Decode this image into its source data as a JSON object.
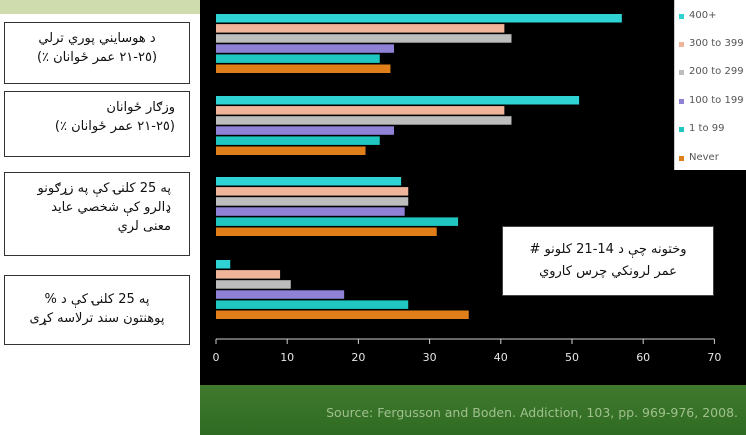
{
  "labels": [
    {
      "line1": "د هوسايني پوري ترلي",
      "line2": "(٢٥-٢١ عمر ځوانان ٪)"
    },
    {
      "line1": "وزګار ځوانان",
      "line2": "(٢٥-٢١ عمر ځوانان ٪)"
    },
    {
      "line1": "په 25 کلنۍ کې په زړګونو",
      "line2": "ډالرو کې شخصي عايد",
      "line3": "معنی لري"
    },
    {
      "line1": "په 25 کلنۍ کې د  %",
      "line2": "پوهنتون سند ترلاسه کړی"
    }
  ],
  "annotation": {
    "line1": "وختونه چې د 14-21 کلونو  #",
    "line2": "عمر لرونکي چرس کاروي"
  },
  "source": "Source: Fergusson and Boden. Addiction, 103, pp. 969-976, 2008.",
  "colors": {
    "400+": "#2fd3d3",
    "300 to 399": "#f0b49a",
    "200 to 299": "#bdbdbd",
    "100 to 199": "#8f82d6",
    "1 to 99": "#1fc7c0",
    "Never": "#e07f1a"
  },
  "chart_data": {
    "type": "bar",
    "orientation": "horizontal",
    "xlim": [
      0,
      70
    ],
    "xticks": [
      "0",
      "10",
      "20",
      "30",
      "40",
      "50",
      "60",
      "70"
    ],
    "groups": [
      "g1",
      "g2",
      "g3",
      "g4"
    ],
    "series": [
      {
        "name": "400+",
        "values": [
          57,
          51,
          26,
          2
        ]
      },
      {
        "name": "300 to 399",
        "values": [
          40.5,
          40.5,
          27,
          9
        ]
      },
      {
        "name": "200 to 299",
        "values": [
          41.5,
          41.5,
          27,
          10.5
        ]
      },
      {
        "name": "100 to 199",
        "values": [
          25,
          25,
          26.5,
          18
        ]
      },
      {
        "name": "1 to 99",
        "values": [
          23,
          23,
          34,
          27
        ]
      },
      {
        "name": "Never",
        "values": [
          24.5,
          21,
          31,
          35.5
        ]
      }
    ]
  }
}
